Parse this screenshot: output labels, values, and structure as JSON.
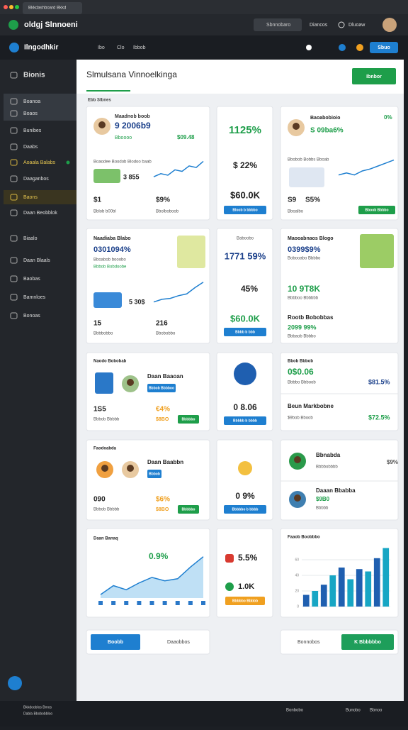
{
  "browser": {
    "tab": "Bkkdashboard Bkkd"
  },
  "app": {
    "brand": "oldgj Slnnoeni",
    "search": "Sbnnobaro",
    "menu1": "Diancos",
    "menu2": "Dluoaw"
  },
  "toolbar": {
    "title": "Ilngodhkir",
    "links": [
      "Ibo",
      "Clo",
      "Ibbob"
    ],
    "button": "Sbuo"
  },
  "sidebar": {
    "items": [
      "Bionis",
      "Boanoa",
      "Boaos",
      "Bunibes",
      "Daabs",
      "Aoaala Balabs",
      "Daaganbos",
      "Baons",
      "Daan Beobblok",
      "Biaalo",
      "Daan Blaals",
      "Baobas",
      "Bamnloes",
      "Bonoas"
    ],
    "footer": [
      "Bkkdooblos Bmos",
      "Dabla Bbobobbloo"
    ]
  },
  "main": {
    "title": "Slmulsana Vinnoelkinga",
    "button": "Ibnbor",
    "tab": "Ebb Slbnes"
  },
  "cards": [
    {
      "texts": [
        "Maadnob boob",
        "9 2006b9",
        "Bboooo",
        "$09.48",
        "Boaodee Boodob Blodoo baab",
        "3 855",
        "$1",
        "$9%",
        "Bblob b00bl",
        "Bbolboboob"
      ],
      "line": {
        "values": [
          20,
          28,
          24,
          38,
          34,
          48,
          44,
          60
        ],
        "ylim": [
          0,
          70
        ]
      }
    },
    {
      "texts": [
        "1125%",
        "$ 22%",
        "$60.0K",
        "Bloob b bbbbo"
      ]
    },
    {
      "texts": [
        "Baoabobioio",
        "S 09ba6%",
        "0%",
        "Bbobob Bobbs Bboab",
        "S9",
        "S5%",
        "Bboalbo",
        "Bboob Bbbbo"
      ],
      "line": {
        "values": [
          22,
          26,
          22,
          30,
          34,
          40,
          46,
          52
        ],
        "ylim": [
          0,
          60
        ]
      }
    },
    {
      "texts": [
        "Naadiaba Blabo",
        "0301094%",
        "Bboabob booobo",
        "Bbbob Bobdoobe",
        "5 30$",
        "15",
        "216",
        "Bbbbobbo",
        "Bbobobbo"
      ],
      "line": {
        "values": [
          10,
          16,
          18,
          24,
          28,
          42,
          54
        ],
        "ylim": [
          0,
          60
        ]
      }
    },
    {
      "texts": [
        "Baboobo",
        "1771 59%",
        "45%",
        "$60.0K",
        "Bbbb b bbb"
      ]
    },
    {
      "texts": [
        "Maooabnaos Blogo",
        "0399$9%",
        "Bobooabo Bbbbo",
        "10 9T8K",
        "Bbbboo Bbbbbb",
        "Rootb Bobobbas",
        "2099 99%",
        "Bbbaob Bbbbo"
      ]
    },
    {
      "texts": [
        "Naodo Bobobab",
        "Daan Baaoan",
        "Bbbob Bbbboo",
        "1S5",
        "€4%",
        "Bbbob Bbbbb",
        "$8BO",
        "Bbbbbo"
      ]
    },
    {
      "texts": [
        "0 8.06",
        "Bbbbb b bbbb"
      ]
    },
    {
      "texts": [
        "Bbob Bbbob",
        "0$0.06",
        "Bbbbo Bbboob",
        "$81.5%",
        "Beun Markbobne",
        "$9bob Bboob",
        "$72.5%"
      ]
    },
    {
      "texts": [
        "Faodoabda",
        "Daan Baabbn",
        "Bbbob",
        "090",
        "$6%",
        "Bbbob Bbbbb",
        "$8BO",
        "Bbbbbo"
      ]
    },
    {
      "texts": [
        "0 9%",
        "Bbbbbo b bbbb"
      ]
    },
    {
      "texts": [
        "Bbnabda",
        "Bbbbobbbb",
        "$9%",
        "Daaan Bbabba",
        "$9B0",
        "Bbbbb"
      ]
    },
    {
      "texts": [
        "Daan Banaq",
        "0.9%"
      ],
      "area": {
        "values": [
          5,
          18,
          12,
          22,
          30,
          25,
          28,
          45,
          60
        ],
        "ylim": [
          0,
          70
        ]
      }
    },
    {
      "texts": [
        "5.5%",
        "1.0K",
        "Bbbbbo Bbbbb"
      ]
    },
    {
      "texts": [
        "Faaob Boobbbo"
      ],
      "bars": {
        "values": [
          15,
          20,
          28,
          40,
          50,
          35,
          48,
          45,
          62,
          75
        ],
        "ylim": [
          0,
          80
        ],
        "yticks": [
          0,
          20,
          40,
          60
        ]
      }
    }
  ],
  "bottom": {
    "left": [
      "Boobb",
      "Daaobbos"
    ],
    "right": [
      "Bonnobos",
      "K Bbbbbbo"
    ]
  },
  "footer": [
    "Bonbobo",
    "Bunobo",
    "Bbnoo"
  ]
}
